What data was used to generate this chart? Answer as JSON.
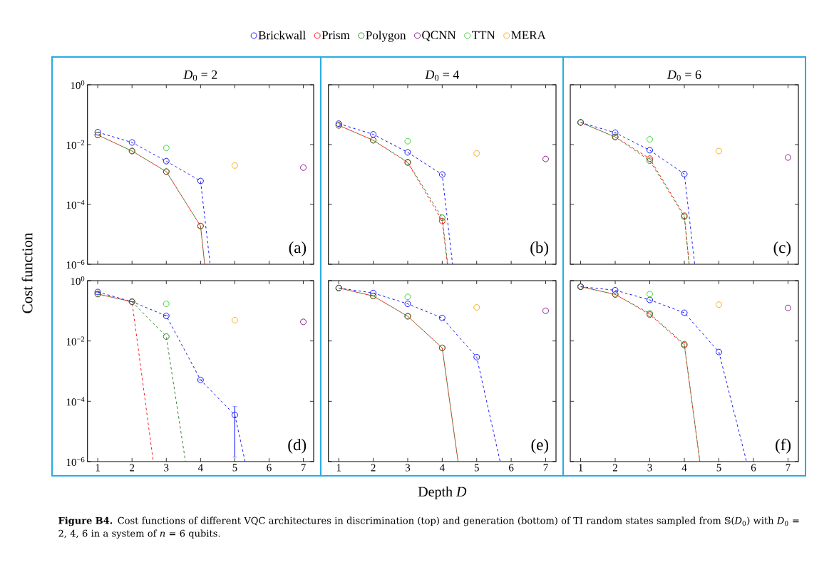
{
  "chart_data": [
    {
      "type": "line",
      "title": "*D*$_{0}$ = 2",
      "ylabel": "Cost function",
      "log": true,
      "legend": "top",
      "marker": "circle",
      "line_style": "dashed",
      "tick_labels": "y",
      "annotations": [
        "(a)"
      ],
      "xlim": [
        0.7,
        7.3
      ],
      "xticks": [
        {
          "value": 1,
          "label": null
        },
        {
          "value": 2,
          "label": null
        },
        {
          "value": 3,
          "label": null
        },
        {
          "value": 4,
          "label": null
        },
        {
          "value": 5,
          "label": null
        },
        {
          "value": 6,
          "label": null
        },
        {
          "value": 7,
          "label": null
        }
      ],
      "ylim": [
        1e-06,
        1
      ],
      "yticks": [
        {
          "value": 1,
          "label": "10$^{0}$"
        },
        {
          "value": 0.01,
          "label": "10$^{−2}$"
        },
        {
          "value": 0.0001,
          "label": "10$^{−4}$"
        },
        {
          "value": 1e-06,
          "label": "10$^{−6}$"
        }
      ],
      "series": [
        {
          "name": "Brickwall",
          "color": "#0000ff",
          "x": [
            1,
            2,
            3,
            4,
            4.28
          ],
          "values": [
            0.026,
            0.0118,
            0.0028,
            0.00061,
            1e-06
          ]
        },
        {
          "name": "Prism",
          "color": "#ff0000",
          "x": [
            1,
            2,
            3,
            4,
            4.12
          ],
          "values": [
            0.021,
            0.0061,
            0.00125,
            1.9e-05,
            1e-06
          ]
        },
        {
          "name": "Polygon",
          "color": "#1e7b1e",
          "x": [
            1,
            2,
            3,
            4,
            4.12
          ],
          "values": [
            0.021,
            0.0061,
            0.00125,
            1.9e-05,
            1e-06
          ]
        },
        {
          "name": "QCNN",
          "color": "#800080",
          "type": "scatter",
          "x": [
            7
          ],
          "values": [
            0.0017
          ]
        },
        {
          "name": "TTN",
          "color": "#32cd32",
          "type": "scatter",
          "x": [
            3
          ],
          "values": [
            0.0077
          ]
        },
        {
          "name": "MERA",
          "color": "#ffa500",
          "type": "scatter",
          "x": [
            5
          ],
          "values": [
            0.002
          ]
        }
      ]
    },
    {
      "type": "line",
      "title": "*D*$_{0}$ = 4",
      "log": true,
      "marker": "circle",
      "line_style": "dashed",
      "tick_labels": false,
      "annotations": [
        "(b)"
      ],
      "xlim": [
        0.7,
        7.3
      ],
      "xticks": [
        {
          "value": 1,
          "label": null
        },
        {
          "value": 2,
          "label": null
        },
        {
          "value": 3,
          "label": null
        },
        {
          "value": 4,
          "label": null
        },
        {
          "value": 5,
          "label": null
        },
        {
          "value": 6,
          "label": null
        },
        {
          "value": 7,
          "label": null
        }
      ],
      "ylim": [
        1e-06,
        1
      ],
      "yticks": [
        {
          "value": 1,
          "label": null
        },
        {
          "value": 0.01,
          "label": null
        },
        {
          "value": 0.0001,
          "label": null
        },
        {
          "value": 1e-06,
          "label": null
        }
      ],
      "series": [
        {
          "color": "#0000ff",
          "x": [
            1,
            2,
            3,
            4,
            4.3
          ],
          "values": [
            0.05,
            0.022,
            0.0055,
            0.001,
            1e-06
          ]
        },
        {
          "color": "#ff0000",
          "x": [
            1,
            2,
            3,
            4,
            4.15
          ],
          "values": [
            0.044,
            0.014,
            0.0025,
            2.8e-05,
            1e-06
          ]
        },
        {
          "color": "#1e7b1e",
          "x": [
            1,
            2,
            3,
            4,
            4.16
          ],
          "values": [
            0.044,
            0.014,
            0.0026,
            3.6e-05,
            1e-06
          ]
        },
        {
          "color": "#800080",
          "type": "scatter",
          "x": [
            7
          ],
          "values": [
            0.0033
          ]
        },
        {
          "color": "#32cd32",
          "type": "scatter",
          "x": [
            3
          ],
          "values": [
            0.013
          ]
        },
        {
          "color": "#ffa500",
          "type": "scatter",
          "x": [
            5
          ],
          "values": [
            0.0051
          ]
        }
      ]
    },
    {
      "type": "line",
      "title": "*D*$_{0}$ = 6",
      "log": true,
      "marker": "circle",
      "line_style": "dashed",
      "tick_labels": false,
      "annotations": [
        "(c)"
      ],
      "xlim": [
        0.7,
        7.3
      ],
      "xticks": [
        {
          "value": 1,
          "label": null
        },
        {
          "value": 2,
          "label": null
        },
        {
          "value": 3,
          "label": null
        },
        {
          "value": 4,
          "label": null
        },
        {
          "value": 5,
          "label": null
        },
        {
          "value": 6,
          "label": null
        },
        {
          "value": 7,
          "label": null
        }
      ],
      "ylim": [
        1e-06,
        1
      ],
      "yticks": [
        {
          "value": 1,
          "label": null
        },
        {
          "value": 0.01,
          "label": null
        },
        {
          "value": 0.0001,
          "label": null
        },
        {
          "value": 1e-06,
          "label": null
        }
      ],
      "series": [
        {
          "color": "#0000ff",
          "x": [
            1,
            2,
            3,
            4,
            4.3
          ],
          "values": [
            0.055,
            0.025,
            0.0065,
            0.00104,
            1e-06
          ]
        },
        {
          "color": "#ff0000",
          "x": [
            1,
            2,
            3,
            4,
            4.14
          ],
          "values": [
            0.055,
            0.018,
            0.0034,
            4.2e-05,
            1e-06
          ]
        },
        {
          "color": "#1e7b1e",
          "x": [
            1,
            2,
            3,
            4,
            4.14
          ],
          "values": [
            0.055,
            0.018,
            0.0029,
            3.9e-05,
            1e-06
          ]
        },
        {
          "color": "#800080",
          "type": "scatter",
          "x": [
            7
          ],
          "values": [
            0.0037
          ]
        },
        {
          "color": "#32cd32",
          "type": "scatter",
          "x": [
            3
          ],
          "values": [
            0.015
          ]
        },
        {
          "color": "#ffa500",
          "type": "scatter",
          "x": [
            5
          ],
          "values": [
            0.0061
          ]
        }
      ]
    },
    {
      "type": "line",
      "log": true,
      "marker": "circle",
      "line_style": "dashed",
      "annotations": [
        "(d)",
        "**Figure B4.** Cost functions of different VQC architectures in discrimination (top) and generation (bottom) of TI random states sampled from 𝕊(*D*$_{0}$) with *D*$_{0}$ = 2, 4, 6 in a system of *n* = 6 qubits."
      ],
      "xlim": [
        0.7,
        7.3
      ],
      "xticks": [
        1,
        2,
        3,
        4,
        5,
        6,
        7
      ],
      "ylim": [
        1e-06,
        1
      ],
      "yticks": [
        {
          "value": 1,
          "label": "10$^{0}$"
        },
        {
          "value": 0.01,
          "label": "10$^{−2}$"
        },
        {
          "value": 0.0001,
          "label": "10$^{−4}$"
        },
        {
          "value": 1e-06,
          "label": "10$^{−6}$"
        }
      ],
      "series": [
        {
          "color": "#0000ff",
          "x": [
            1,
            2,
            3,
            4,
            5,
            5.3
          ],
          "values": [
            0.42,
            0.2,
            0.068,
            0.00051,
            3.5e-05,
            1e-06
          ],
          "errors": [
            null,
            null,
            null,
            null,
            [
              1.4e-06,
              6.8e-05
            ],
            null
          ]
        },
        {
          "color": "#ff0000",
          "x": [
            1,
            2,
            2.62
          ],
          "values": [
            0.36,
            0.2,
            1e-06
          ]
        },
        {
          "color": "#1e7b1e",
          "x": [
            1,
            2,
            3,
            3.56
          ],
          "values": [
            0.36,
            0.2,
            0.014,
            1e-06
          ]
        },
        {
          "color": "#800080",
          "type": "scatter",
          "x": [
            7
          ],
          "values": [
            0.043
          ]
        },
        {
          "color": "#32cd32",
          "type": "scatter",
          "x": [
            3
          ],
          "values": [
            0.17
          ]
        },
        {
          "color": "#ffa500",
          "type": "scatter",
          "x": [
            5
          ],
          "values": [
            0.049
          ]
        }
      ]
    },
    {
      "type": "line",
      "xlabel": "Depth *D*",
      "log": true,
      "marker": "circle",
      "line_style": "dashed",
      "tick_labels": "x",
      "annotations": [
        "(e)"
      ],
      "xlim": [
        0.7,
        7.3
      ],
      "xticks": [
        1,
        2,
        3,
        4,
        5,
        6,
        7
      ],
      "ylim": [
        1e-06,
        1
      ],
      "yticks": [
        {
          "value": 1,
          "label": null
        },
        {
          "value": 0.01,
          "label": null
        },
        {
          "value": 0.0001,
          "label": null
        },
        {
          "value": 1e-06,
          "label": null
        }
      ],
      "series": [
        {
          "color": "#0000ff",
          "x": [
            1,
            2,
            3,
            4,
            5,
            5.68
          ],
          "values": [
            0.57,
            0.39,
            0.17,
            0.058,
            0.0029,
            1e-06
          ]
        },
        {
          "color": "#ff0000",
          "x": [
            1,
            2,
            3,
            4,
            4.46
          ],
          "values": [
            0.57,
            0.31,
            0.066,
            0.0059,
            1e-06
          ]
        },
        {
          "color": "#1e7b1e",
          "x": [
            1,
            2,
            3,
            4,
            4.46
          ],
          "values": [
            0.57,
            0.31,
            0.066,
            0.0059,
            1e-06
          ]
        },
        {
          "color": "#800080",
          "type": "scatter",
          "x": [
            7
          ],
          "values": [
            0.1
          ]
        },
        {
          "color": "#32cd32",
          "type": "scatter",
          "x": [
            3
          ],
          "values": [
            0.29
          ]
        },
        {
          "color": "#ffa500",
          "type": "scatter",
          "x": [
            5
          ],
          "values": [
            0.13
          ]
        }
      ]
    },
    {
      "type": "line",
      "log": true,
      "marker": "circle",
      "line_style": "dashed",
      "tick_labels": "x",
      "annotations": [
        "(f)"
      ],
      "xlim": [
        0.7,
        7.3
      ],
      "xticks": [
        1,
        2,
        3,
        4,
        5,
        6,
        7
      ],
      "ylim": [
        1e-06,
        1
      ],
      "yticks": [
        {
          "value": 1,
          "label": null
        },
        {
          "value": 0.01,
          "label": null
        },
        {
          "value": 0.0001,
          "label": null
        },
        {
          "value": 1e-06,
          "label": null
        }
      ],
      "series": [
        {
          "color": "#0000ff",
          "x": [
            1,
            2,
            3,
            4,
            5,
            5.8
          ],
          "values": [
            0.63,
            0.48,
            0.23,
            0.086,
            0.0043,
            1e-06
          ]
        },
        {
          "color": "#ff0000",
          "x": [
            1,
            2,
            3,
            4,
            4.45
          ],
          "values": [
            0.63,
            0.35,
            0.075,
            0.0073,
            1e-06
          ]
        },
        {
          "color": "#1e7b1e",
          "x": [
            1,
            2,
            3,
            4,
            4.45
          ],
          "values": [
            0.63,
            0.35,
            0.081,
            0.0078,
            1e-06
          ]
        },
        {
          "color": "#800080",
          "type": "scatter",
          "x": [
            7
          ],
          "values": [
            0.125
          ]
        },
        {
          "color": "#32cd32",
          "type": "scatter",
          "x": [
            3
          ],
          "values": [
            0.36
          ]
        },
        {
          "color": "#ffa500",
          "type": "scatter",
          "x": [
            5
          ],
          "values": [
            0.16
          ]
        }
      ]
    }
  ]
}
